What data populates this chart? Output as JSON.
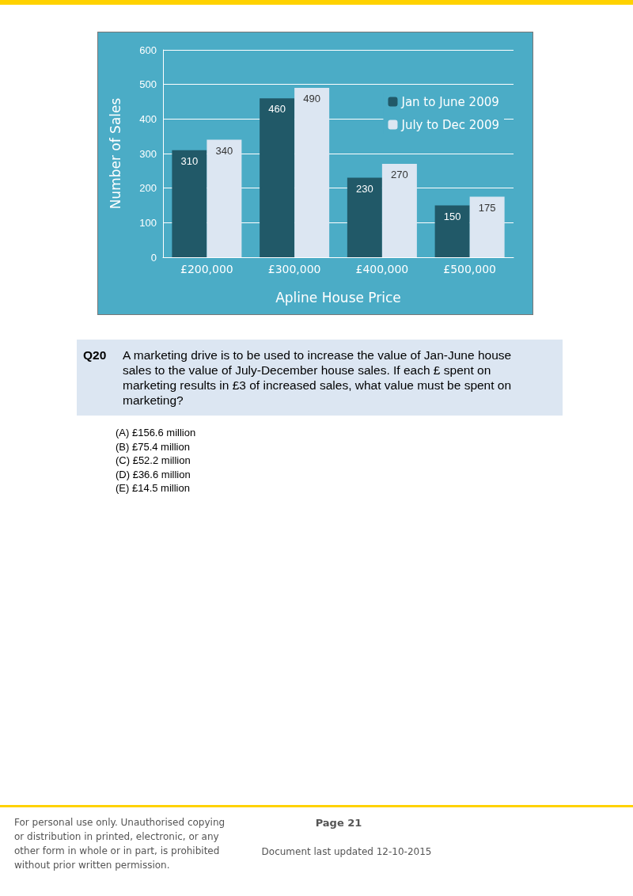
{
  "chart_data": {
    "type": "bar",
    "xlabel": "Apline House Price",
    "ylabel": "Number of Sales",
    "categories": [
      "£200,000",
      "£300,000",
      "£400,000",
      "£500,000"
    ],
    "series": [
      {
        "name": "Jan to June 2009",
        "color": "#215968",
        "values": [
          310,
          460,
          230,
          150
        ]
      },
      {
        "name": "July to Dec 2009",
        "color": "#dce6f2",
        "values": [
          340,
          490,
          270,
          175
        ]
      }
    ],
    "ylim": [
      0,
      600
    ],
    "yticks": [
      0,
      100,
      200,
      300,
      400,
      500,
      600
    ],
    "grid": "y",
    "legend": "top right",
    "data_labels": true,
    "annotations": [
      "Q20",
      "A marketing drive is to be used to increase the value of Jan-June house sales to the value of July-December house sales. If each £ spent on marketing results in £3 of increased sales, what value must be spent on marketing?",
      "(A)  £156.6 million",
      "(B)  £75.4 million",
      "(C)  £52.2 million",
      "(D)  £36.6 million",
      "(E)  £14.5 million",
      "For personal use only. Unauthorised copying or distribution in printed, electronic, or any other form in whole or in part, is prohibited without prior written permission.",
      "Page 21",
      "Document last updated 12-10-2015"
    ]
  }
}
